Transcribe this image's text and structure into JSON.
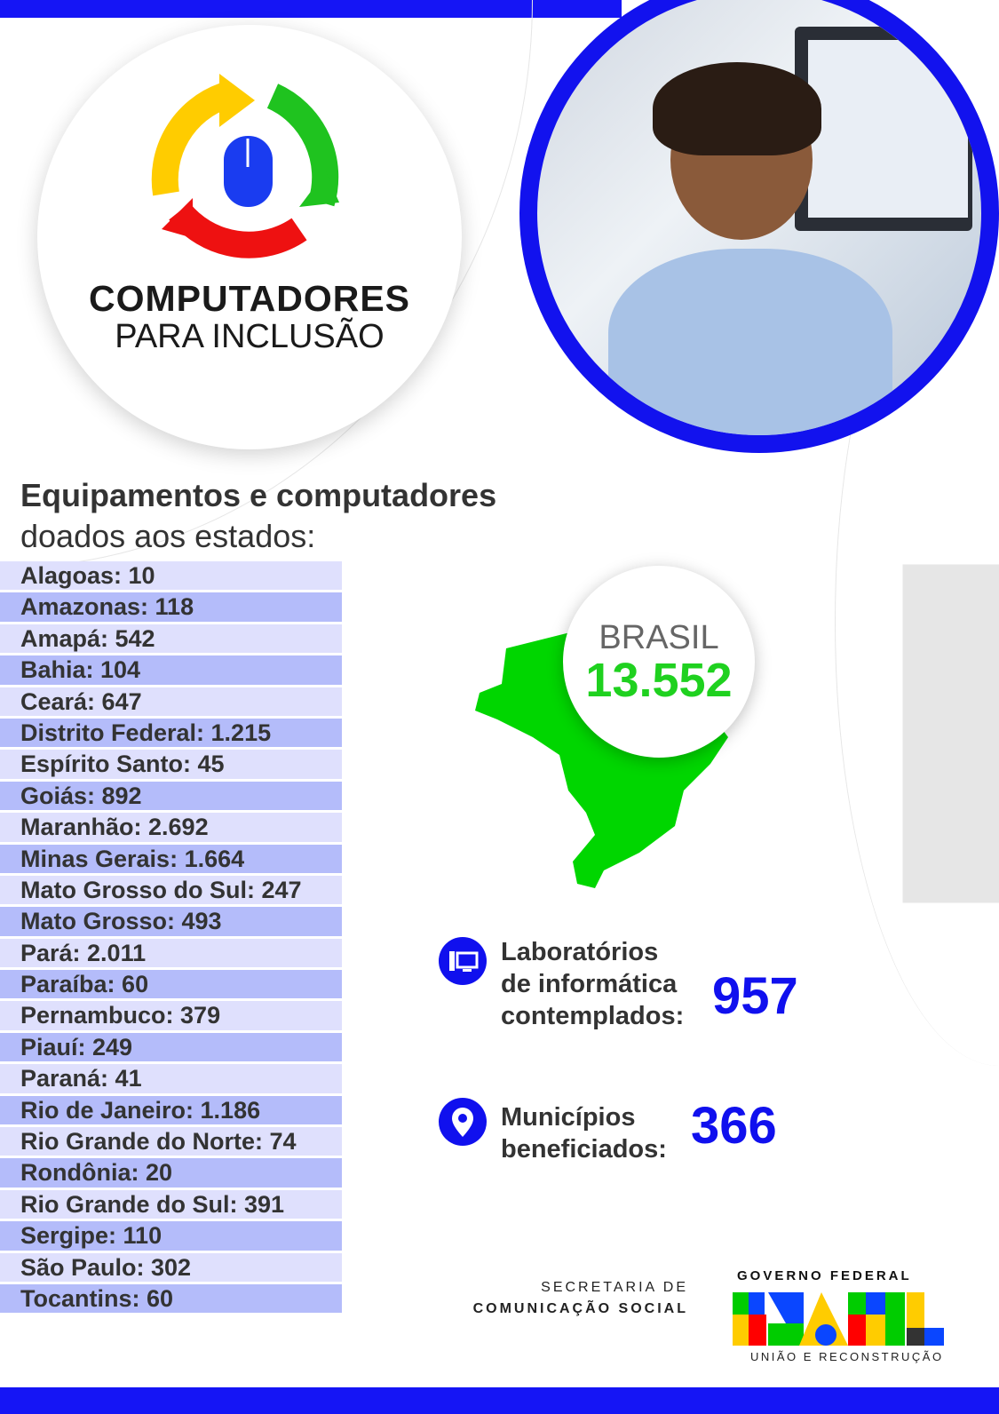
{
  "logo": {
    "line1": "COMPUTADORES",
    "line2": "PARA INCLUSÃO",
    "icon": "recycle-arrows-mouse-icon"
  },
  "heading": {
    "line1": "Equipamentos e computadores",
    "line2": "doados aos estados:"
  },
  "states": [
    {
      "label": "Alagoas: 10"
    },
    {
      "label": "Amazonas: 118"
    },
    {
      "label": "Amapá: 542"
    },
    {
      "label": "Bahia: 104"
    },
    {
      "label": "Ceará: 647"
    },
    {
      "label": "Distrito Federal: 1.215"
    },
    {
      "label": "Espírito Santo: 45"
    },
    {
      "label": "Goiás: 892"
    },
    {
      "label": "Maranhão: 2.692"
    },
    {
      "label": "Minas Gerais: 1.664"
    },
    {
      "label": "Mato Grosso do Sul: 247"
    },
    {
      "label": "Mato Grosso: 493"
    },
    {
      "label": "Pará: 2.011"
    },
    {
      "label": "Paraíba: 60"
    },
    {
      "label": "Pernambuco: 379"
    },
    {
      "label": "Piauí: 249"
    },
    {
      "label": "Paraná: 41"
    },
    {
      "label": "Rio de Janeiro: 1.186"
    },
    {
      "label": "Rio Grande do Norte: 74"
    },
    {
      "label": "Rondônia: 20"
    },
    {
      "label": "Rio Grande do Sul: 391"
    },
    {
      "label": "Sergipe: 110"
    },
    {
      "label": "São Paulo: 302"
    },
    {
      "label": "Tocantins: 60"
    }
  ],
  "brasil": {
    "label": "BRASIL",
    "value": "13.552"
  },
  "labs": {
    "line1": "Laboratórios",
    "line2": "de informática",
    "line3": "contemplados:",
    "value": "957",
    "icon": "computer-icon"
  },
  "municipios": {
    "line1": "Municípios",
    "line2": "beneficiados:",
    "value": "366",
    "icon": "location-pin-icon"
  },
  "footer": {
    "secretaria1": "SECRETARIA DE",
    "secretaria2": "COMUNICAÇÃO SOCIAL",
    "gov": "GOVERNO FEDERAL",
    "brasil_logo": "BRASIL",
    "slogan": "UNIÃO E RECONSTRUÇÃO"
  },
  "colors": {
    "blue": "#1515f5",
    "green": "#1fd11f",
    "row_light": "#dfe0fd",
    "row_dark": "#b4bcfa"
  }
}
